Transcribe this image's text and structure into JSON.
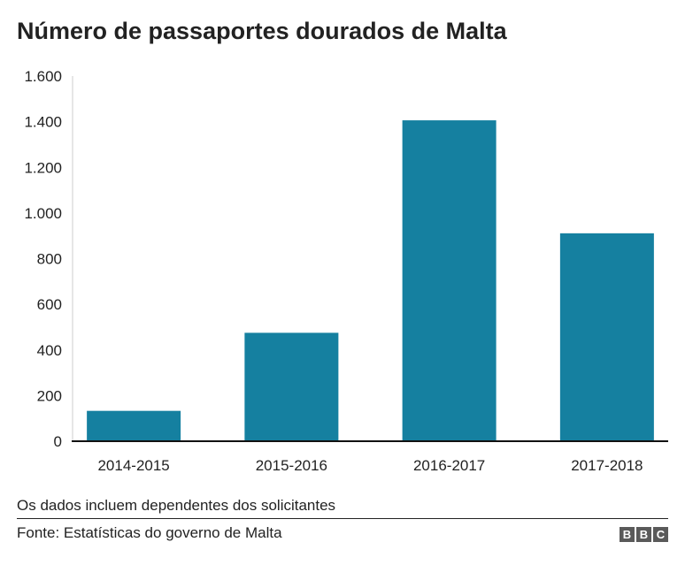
{
  "chart_data": {
    "type": "bar",
    "title": "Número de passaportes dourados de Malta",
    "categories": [
      "2014-2015",
      "2015-2016",
      "2016-2017",
      "2017-2018"
    ],
    "values": [
      133,
      475,
      1406,
      911
    ],
    "ylim": [
      0,
      1600
    ],
    "yticks": [
      0,
      200,
      400,
      600,
      800,
      1000,
      1200,
      1400,
      1600
    ],
    "ytick_labels": [
      "0",
      "200",
      "400",
      "600",
      "800",
      "1.000",
      "1.200",
      "1.400",
      "1.600"
    ],
    "bar_color": "#1580a0",
    "grid": false,
    "xlabel": "",
    "ylabel": ""
  },
  "footer": {
    "note": "Os dados incluem dependentes dos solicitantes",
    "source": "Fonte: Estatísticas do governo de Malta",
    "logo": "BBC"
  }
}
